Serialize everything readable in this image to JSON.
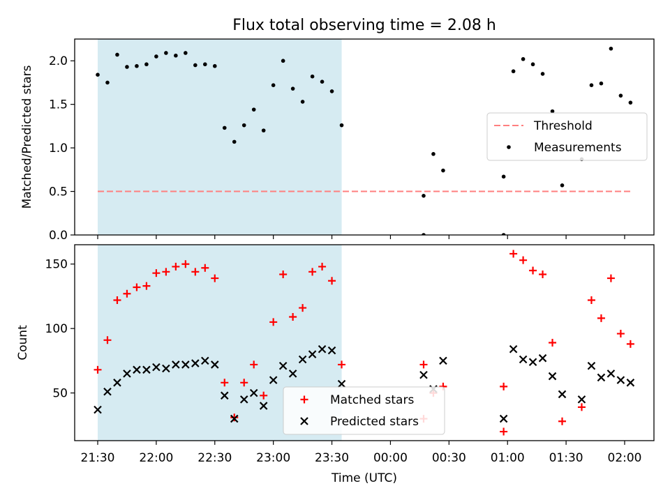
{
  "title": "Flux total observing time = 2.08 h",
  "colors": {
    "shade": "#add8e6",
    "threshold": "#ff7f7f",
    "measurement": "#000000",
    "matched": "#ff0000",
    "predicted": "#000000"
  },
  "chart_data": [
    {
      "type": "scatter",
      "panel": "top",
      "ylabel": "Matched/Predicted stars",
      "ylim": [
        0,
        2.25
      ],
      "yticks": [
        "0.0",
        "0.5",
        "1.0",
        "1.5",
        "2.0"
      ],
      "threshold": {
        "name": "Threshold",
        "value": 0.5,
        "x_range": [
          "21:30",
          "02:03"
        ]
      },
      "shaded_interval": [
        "21:30",
        "23:35"
      ],
      "legend_position": "center-right",
      "series": [
        {
          "name": "Measurements",
          "points": [
            [
              "21:30",
              1.84
            ],
            [
              "21:35",
              1.75
            ],
            [
              "21:40",
              2.07
            ],
            [
              "21:45",
              1.93
            ],
            [
              "21:50",
              1.94
            ],
            [
              "21:55",
              1.96
            ],
            [
              "22:00",
              2.05
            ],
            [
              "22:05",
              2.09
            ],
            [
              "22:10",
              2.06
            ],
            [
              "22:15",
              2.09
            ],
            [
              "22:20",
              1.95
            ],
            [
              "22:25",
              1.96
            ],
            [
              "22:30",
              1.94
            ],
            [
              "22:35",
              1.23
            ],
            [
              "22:40",
              1.07
            ],
            [
              "22:45",
              1.26
            ],
            [
              "22:50",
              1.44
            ],
            [
              "22:55",
              1.2
            ],
            [
              "23:00",
              1.72
            ],
            [
              "23:05",
              2.0
            ],
            [
              "23:10",
              1.68
            ],
            [
              "23:15",
              1.53
            ],
            [
              "23:20",
              1.82
            ],
            [
              "23:25",
              1.76
            ],
            [
              "23:30",
              1.65
            ],
            [
              "23:35",
              1.26
            ],
            [
              "00:17",
              0.45
            ],
            [
              "00:17",
              0.0
            ],
            [
              "00:22",
              0.93
            ],
            [
              "00:27",
              0.74
            ],
            [
              "00:58",
              0.67
            ],
            [
              "00:58",
              0.0
            ],
            [
              "01:03",
              1.88
            ],
            [
              "01:08",
              2.02
            ],
            [
              "01:13",
              1.96
            ],
            [
              "01:18",
              1.85
            ],
            [
              "01:23",
              1.42
            ],
            [
              "01:28",
              0.57
            ],
            [
              "01:38",
              0.87
            ],
            [
              "01:43",
              1.72
            ],
            [
              "01:48",
              1.74
            ],
            [
              "01:53",
              2.14
            ],
            [
              "01:58",
              1.6
            ],
            [
              "02:03",
              1.52
            ]
          ]
        }
      ]
    },
    {
      "type": "scatter",
      "panel": "bottom",
      "xlabel": "Time (UTC)",
      "ylabel": "Count",
      "ylim": [
        13,
        165
      ],
      "yticks": [
        "50",
        "100",
        "150"
      ],
      "xticks": [
        "21:30",
        "22:00",
        "22:30",
        "23:00",
        "23:30",
        "00:00",
        "00:30",
        "01:00",
        "01:30",
        "02:00"
      ],
      "shaded_interval": [
        "21:30",
        "23:35"
      ],
      "legend_position": "bottom-center",
      "series": [
        {
          "name": "Matched stars",
          "marker": "+",
          "points": [
            [
              "21:30",
              68
            ],
            [
              "21:35",
              91
            ],
            [
              "21:40",
              122
            ],
            [
              "21:45",
              127
            ],
            [
              "21:50",
              132
            ],
            [
              "21:55",
              133
            ],
            [
              "22:00",
              143
            ],
            [
              "22:05",
              144
            ],
            [
              "22:10",
              148
            ],
            [
              "22:15",
              150
            ],
            [
              "22:20",
              144
            ],
            [
              "22:25",
              147
            ],
            [
              "22:30",
              139
            ],
            [
              "22:35",
              58
            ],
            [
              "22:40",
              31
            ],
            [
              "22:45",
              58
            ],
            [
              "22:50",
              72
            ],
            [
              "22:55",
              48
            ],
            [
              "23:00",
              105
            ],
            [
              "23:05",
              142
            ],
            [
              "23:10",
              109
            ],
            [
              "23:15",
              116
            ],
            [
              "23:20",
              144
            ],
            [
              "23:25",
              148
            ],
            [
              "23:30",
              137
            ],
            [
              "23:35",
              72
            ],
            [
              "00:17",
              72
            ],
            [
              "00:17",
              30
            ],
            [
              "00:22",
              50
            ],
            [
              "00:27",
              55
            ],
            [
              "00:58",
              55
            ],
            [
              "00:58",
              20
            ],
            [
              "01:03",
              158
            ],
            [
              "01:08",
              153
            ],
            [
              "01:13",
              145
            ],
            [
              "01:18",
              142
            ],
            [
              "01:23",
              89
            ],
            [
              "01:28",
              28
            ],
            [
              "01:38",
              39
            ],
            [
              "01:43",
              122
            ],
            [
              "01:48",
              108
            ],
            [
              "01:53",
              139
            ],
            [
              "01:58",
              96
            ],
            [
              "02:03",
              88
            ]
          ]
        },
        {
          "name": "Predicted stars",
          "marker": "x",
          "points": [
            [
              "21:30",
              37
            ],
            [
              "21:35",
              51
            ],
            [
              "21:40",
              58
            ],
            [
              "21:45",
              65
            ],
            [
              "21:50",
              68
            ],
            [
              "21:55",
              68
            ],
            [
              "22:00",
              70
            ],
            [
              "22:05",
              69
            ],
            [
              "22:10",
              72
            ],
            [
              "22:15",
              72
            ],
            [
              "22:20",
              73
            ],
            [
              "22:25",
              75
            ],
            [
              "22:30",
              72
            ],
            [
              "22:35",
              48
            ],
            [
              "22:40",
              30
            ],
            [
              "22:45",
              45
            ],
            [
              "22:50",
              50
            ],
            [
              "22:55",
              40
            ],
            [
              "23:00",
              60
            ],
            [
              "23:05",
              71
            ],
            [
              "23:10",
              65
            ],
            [
              "23:15",
              76
            ],
            [
              "23:20",
              80
            ],
            [
              "23:25",
              84
            ],
            [
              "23:30",
              83
            ],
            [
              "23:35",
              57
            ],
            [
              "00:17",
              64
            ],
            [
              "00:22",
              53
            ],
            [
              "00:27",
              75
            ],
            [
              "00:58",
              30
            ],
            [
              "01:03",
              84
            ],
            [
              "01:08",
              76
            ],
            [
              "01:13",
              74
            ],
            [
              "01:18",
              77
            ],
            [
              "01:23",
              63
            ],
            [
              "01:28",
              49
            ],
            [
              "01:38",
              45
            ],
            [
              "01:43",
              71
            ],
            [
              "01:48",
              62
            ],
            [
              "01:53",
              65
            ],
            [
              "01:58",
              60
            ],
            [
              "02:03",
              58
            ]
          ]
        }
      ]
    }
  ]
}
